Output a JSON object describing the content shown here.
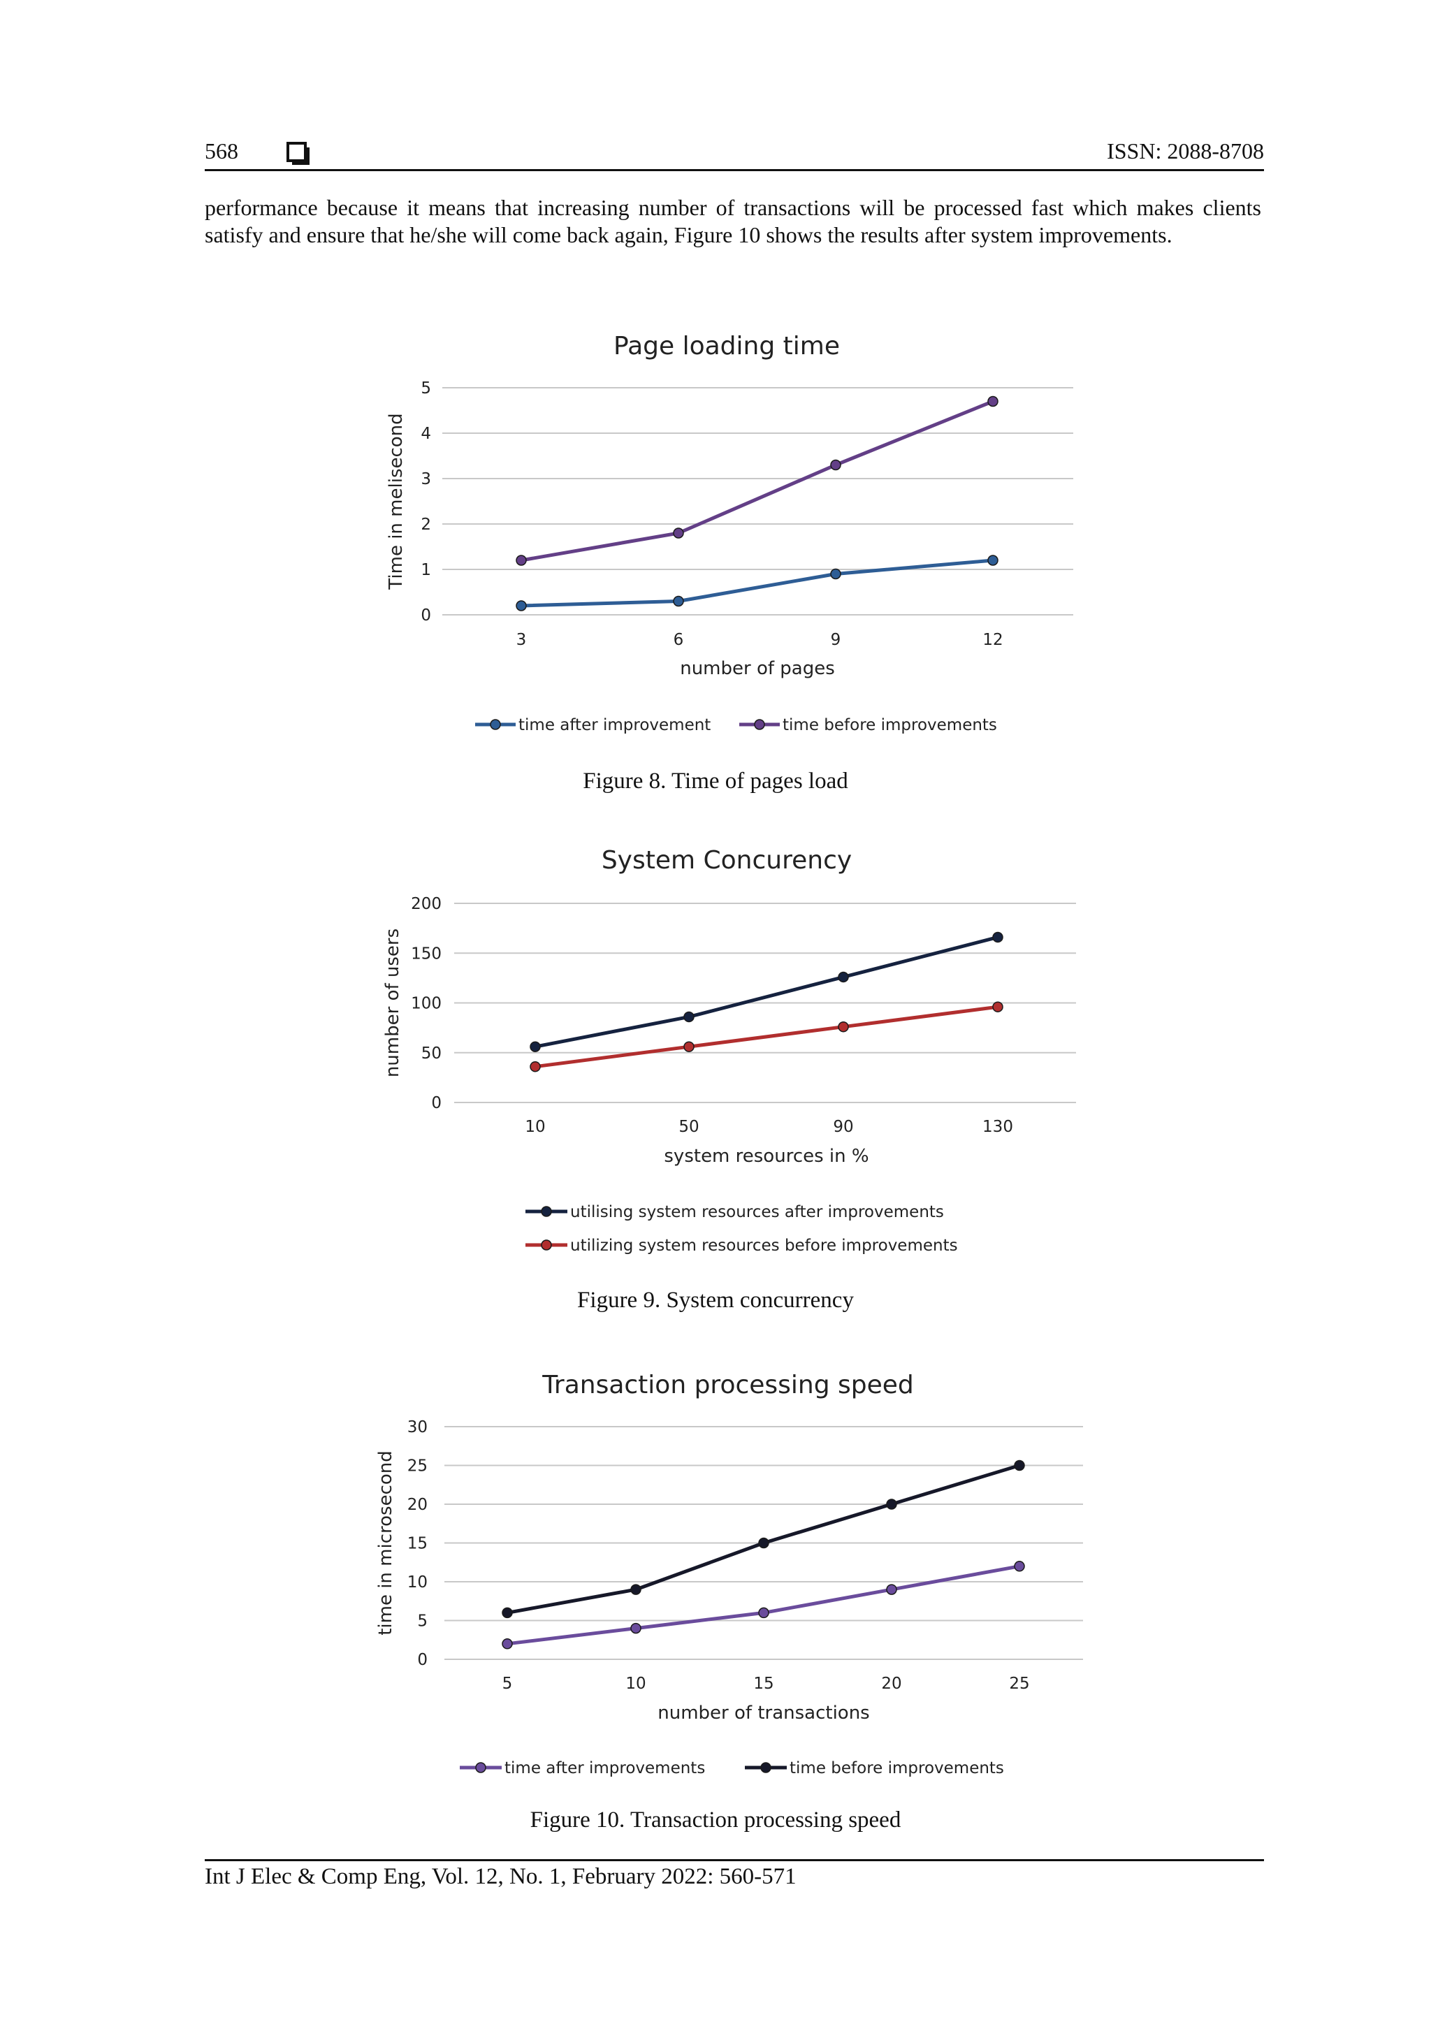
{
  "header": {
    "page_number": "568",
    "issn": "ISSN: 2088-8708"
  },
  "body_text": "performance because it means that increasing number of transactions will be processed fast which makes clients satisfy and ensure that he/she will come back again, Figure 10 shows the results after system improvements.",
  "figures": [
    {
      "caption": "Figure 8. Time of pages load"
    },
    {
      "caption": "Figure 9. System concurrency"
    },
    {
      "caption": "Figure 10. Transaction processing speed"
    }
  ],
  "footer": {
    "journal": "Int J Elec & Comp Eng, Vol. 12, No. 1, February 2022: 560-571"
  },
  "chart_data": [
    {
      "type": "line",
      "title": "Page loading time",
      "xlabel": "number of pages",
      "ylabel": "Time in melisecond",
      "categories": [
        "3",
        "6",
        "9",
        "12"
      ],
      "yticks": [
        "0",
        "1",
        "2",
        "3",
        "4",
        "5"
      ],
      "ylim": [
        0,
        5
      ],
      "grid": true,
      "legend_position": "bottom",
      "series": [
        {
          "name": "time after improvement",
          "color": "#2e5d95",
          "values": [
            0.2,
            0.3,
            0.9,
            1.2
          ]
        },
        {
          "name": "time before improvements",
          "color": "#633f87",
          "values": [
            1.2,
            1.8,
            3.3,
            4.7
          ]
        }
      ]
    },
    {
      "type": "line",
      "title": "System Concurency",
      "xlabel": "system resources in %",
      "ylabel": "number of users",
      "categories": [
        "10",
        "50",
        "90",
        "130"
      ],
      "yticks": [
        "0",
        "50",
        "100",
        "150",
        "200"
      ],
      "ylim": [
        0,
        200
      ],
      "grid": true,
      "legend_position": "bottom",
      "series": [
        {
          "name": "utilising system resources after improvements",
          "color": "#15223f",
          "values": [
            56,
            86,
            126,
            166
          ]
        },
        {
          "name": "utilizing system resources before improvements",
          "color": "#b12e2e",
          "values": [
            36,
            56,
            76,
            96
          ]
        }
      ]
    },
    {
      "type": "line",
      "title": "Transaction processing speed",
      "xlabel": "number of transactions",
      "ylabel": "time in microsecond",
      "categories": [
        "5",
        "10",
        "15",
        "20",
        "25"
      ],
      "yticks": [
        "0",
        "5",
        "10",
        "15",
        "20",
        "25",
        "30"
      ],
      "ylim": [
        0,
        30
      ],
      "grid": true,
      "legend_position": "bottom",
      "series": [
        {
          "name": "time after improvements",
          "color": "#6a4c9c",
          "values": [
            2,
            4,
            6,
            9,
            12
          ]
        },
        {
          "name": "time  before improvements",
          "color": "#161829",
          "values": [
            6,
            9,
            15,
            20,
            25
          ]
        }
      ]
    }
  ]
}
